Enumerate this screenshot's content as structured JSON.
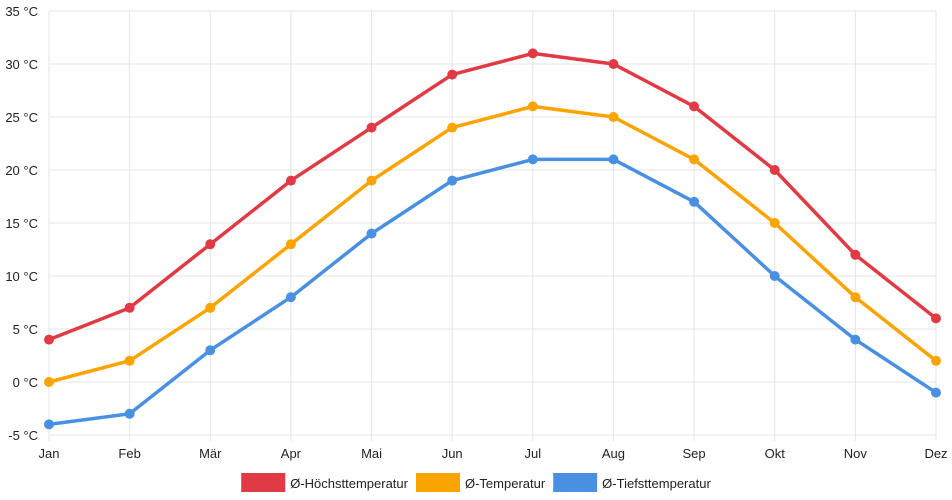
{
  "chart_data": {
    "type": "line",
    "title": "",
    "xlabel": "",
    "ylabel": "",
    "categories": [
      "Jan",
      "Feb",
      "Mär",
      "Apr",
      "Mai",
      "Jun",
      "Jul",
      "Aug",
      "Sep",
      "Okt",
      "Nov",
      "Dez"
    ],
    "ylim": [
      -5,
      35
    ],
    "y_ticks": [
      35,
      30,
      25,
      20,
      15,
      10,
      5,
      0,
      -5
    ],
    "y_tick_labels": [
      "35 °C",
      "30 °C",
      "25 °C",
      "20 °C",
      "15 °C",
      "10 °C",
      "5 °C",
      "0 °C",
      "-5 °C"
    ],
    "grid": true,
    "legend_position": "bottom",
    "series": [
      {
        "name": "Ø-Höchsttemperatur",
        "color": "#e03a45",
        "values": [
          4,
          7,
          13,
          19,
          24,
          29,
          31,
          30,
          26,
          20,
          12,
          6
        ]
      },
      {
        "name": "Ø-Temperatur",
        "color": "#fba400",
        "values": [
          0,
          2,
          7,
          13,
          19,
          24,
          26,
          25,
          21,
          15,
          8,
          2
        ]
      },
      {
        "name": "Ø-Tiefsttemperatur",
        "color": "#4a90e2",
        "values": [
          -4,
          -3,
          3,
          8,
          14,
          19,
          21,
          21,
          17,
          10,
          4,
          -1
        ]
      }
    ]
  }
}
